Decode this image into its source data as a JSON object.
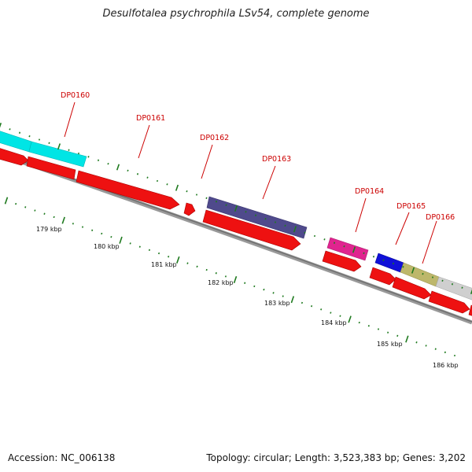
{
  "title": "Desulfotalea psychrophila LSv54, complete genome",
  "accession_label": "Accession: NC_006138",
  "summary_label": "Topology: circular; Length: 3,523,383 bp; Genes: 3,202",
  "colors": {
    "gene_label": "#cc0000",
    "forward_gene": "#ee1111",
    "backbone": "#888888",
    "ticks": "#1f7a1f",
    "cyan": "#00e5e5",
    "purple": "#4f4a8c",
    "magenta": "#e0248f",
    "blue": "#1010d8",
    "olive": "#bdb76b",
    "gray": "#cfcfcf"
  },
  "gene_labels": [
    "DP0160",
    "DP0161",
    "DP0162",
    "DP0163",
    "DP0164",
    "DP0165",
    "DP0166"
  ],
  "kbp_labels": [
    "179 kbp",
    "180 kbp",
    "181 kbp",
    "182 kbp",
    "183 kbp",
    "184 kbp",
    "185 kbp",
    "186 kbp"
  ]
}
